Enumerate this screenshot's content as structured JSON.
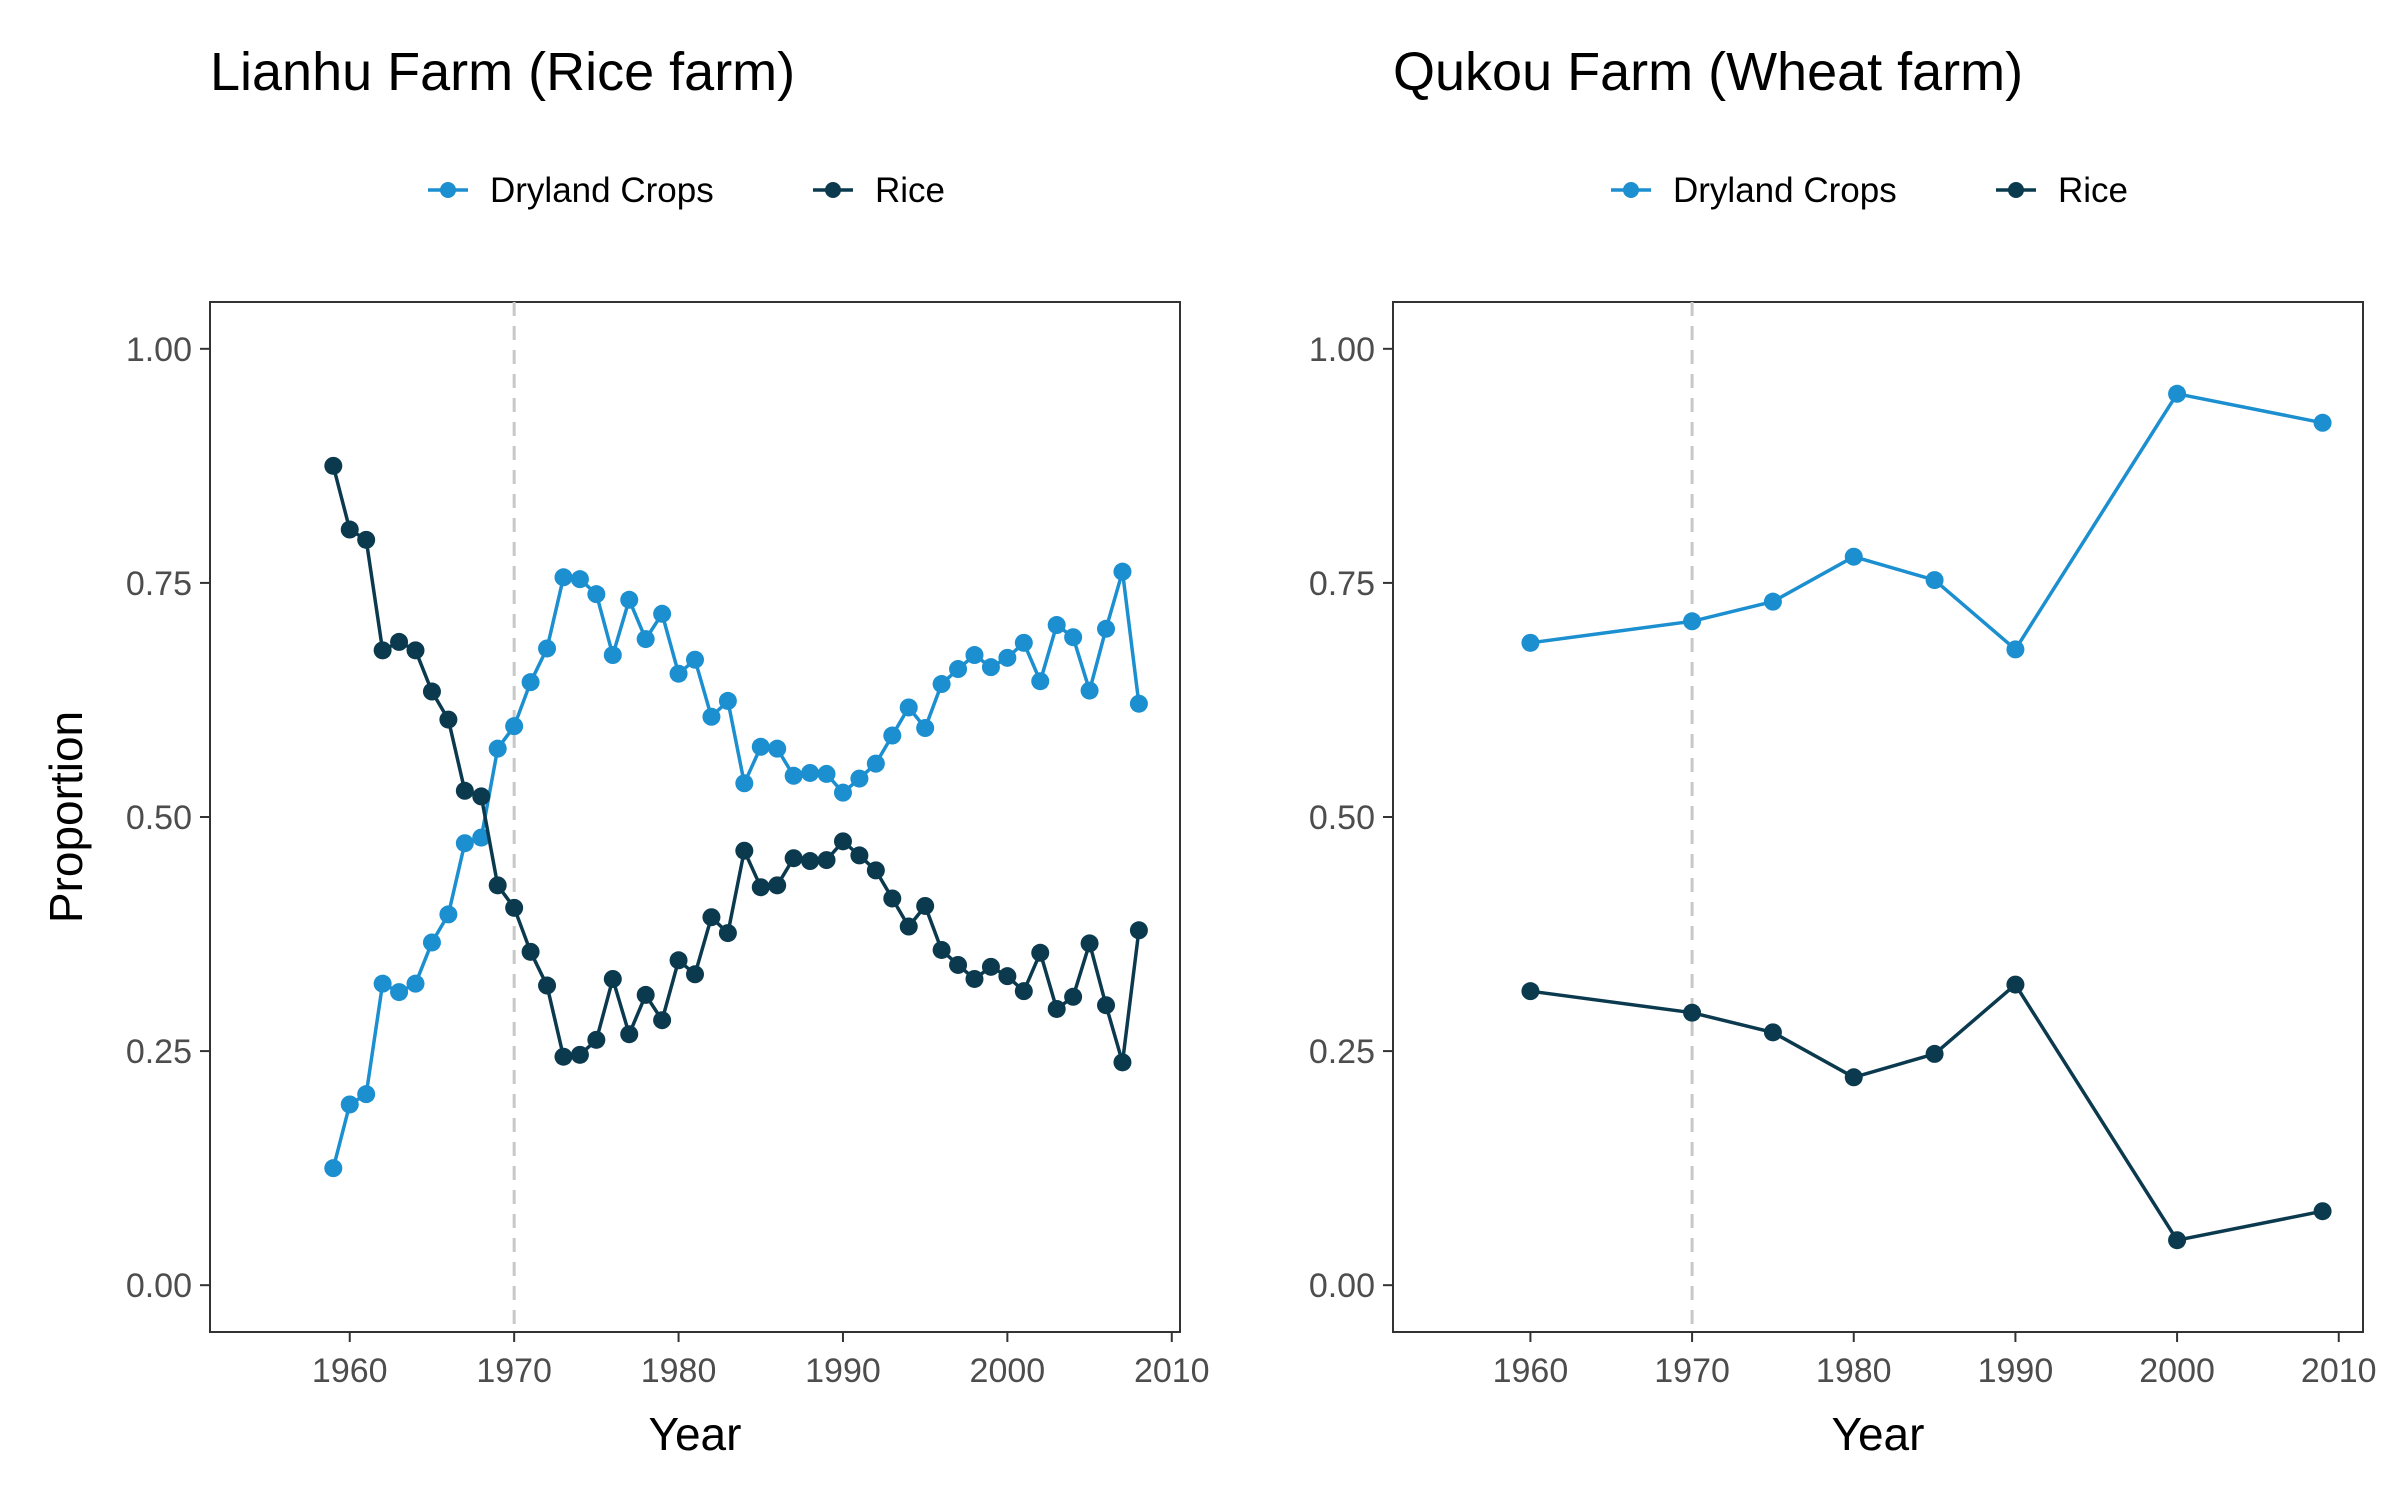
{
  "colors": {
    "dryland": "#1b8fcf",
    "rice": "#0b3a4f",
    "reference_line": "#c8c8c8",
    "frame": "#333333",
    "tick_text": "#4d4d4d"
  },
  "chart_data": [
    {
      "type": "line",
      "title": "Lianhu Farm (Rice farm)",
      "xlabel": "Year",
      "ylabel": "Proportion",
      "xlim": [
        1951.5,
        2010.5
      ],
      "ylim": [
        -0.05,
        1.05
      ],
      "x_ticks": [
        1960,
        1970,
        1980,
        1990,
        2000,
        2010
      ],
      "y_ticks": [
        0,
        0.25,
        0.5,
        0.75,
        1
      ],
      "x_tick_labels": [
        "1960",
        "1970",
        "1980",
        "1990",
        "2000",
        "2010"
      ],
      "y_tick_labels": [
        "0.00",
        "0.25",
        "0.50",
        "0.75",
        "1.00"
      ],
      "reference_line_x": 1970,
      "grid": false,
      "legend_position": "top",
      "legend": [
        "Dryland Crops",
        "Rice"
      ],
      "x": [
        1959,
        1960,
        1961,
        1962,
        1963,
        1964,
        1965,
        1966,
        1967,
        1968,
        1969,
        1970,
        1971,
        1972,
        1973,
        1974,
        1975,
        1976,
        1977,
        1978,
        1979,
        1980,
        1981,
        1982,
        1983,
        1984,
        1985,
        1986,
        1987,
        1988,
        1989,
        1990,
        1991,
        1992,
        1993,
        1994,
        1995,
        1996,
        1997,
        1998,
        1999,
        2000,
        2001,
        2002,
        2003,
        2004,
        2005,
        2006,
        2007,
        2008
      ],
      "series": [
        {
          "name": "Dryland Crops",
          "values": [
            0.125,
            0.193,
            0.204,
            0.322,
            0.313,
            0.322,
            0.366,
            0.396,
            0.472,
            0.478,
            0.573,
            0.597,
            0.644,
            0.68,
            0.756,
            0.754,
            0.738,
            0.673,
            0.732,
            0.69,
            0.717,
            0.653,
            0.668,
            0.607,
            0.624,
            0.536,
            0.575,
            0.573,
            0.544,
            0.547,
            0.546,
            0.526,
            0.541,
            0.557,
            0.587,
            0.617,
            0.595,
            0.642,
            0.658,
            0.673,
            0.66,
            0.67,
            0.686,
            0.645,
            0.705,
            0.692,
            0.635,
            0.701,
            0.762,
            0.621
          ]
        },
        {
          "name": "Rice",
          "values": [
            0.875,
            0.807,
            0.796,
            0.678,
            0.687,
            0.678,
            0.634,
            0.604,
            0.528,
            0.522,
            0.427,
            0.403,
            0.356,
            0.32,
            0.244,
            0.246,
            0.262,
            0.327,
            0.268,
            0.31,
            0.283,
            0.347,
            0.332,
            0.393,
            0.376,
            0.464,
            0.425,
            0.427,
            0.456,
            0.453,
            0.454,
            0.474,
            0.459,
            0.443,
            0.413,
            0.383,
            0.405,
            0.358,
            0.342,
            0.327,
            0.34,
            0.33,
            0.314,
            0.355,
            0.295,
            0.308,
            0.365,
            0.299,
            0.238,
            0.379
          ]
        }
      ]
    },
    {
      "type": "line",
      "title": "Qukou Farm (Wheat farm)",
      "xlabel": "Year",
      "ylabel": "",
      "xlim": [
        1951.5,
        2011.5
      ],
      "ylim": [
        -0.05,
        1.05
      ],
      "x_ticks": [
        1960,
        1970,
        1980,
        1990,
        2000,
        2010
      ],
      "y_ticks": [
        0,
        0.25,
        0.5,
        0.75,
        1
      ],
      "x_tick_labels": [
        "1960",
        "1970",
        "1980",
        "1990",
        "2000",
        "2010"
      ],
      "y_tick_labels": [
        "0.00",
        "0.25",
        "0.50",
        "0.75",
        "1.00"
      ],
      "reference_line_x": 1970,
      "grid": false,
      "legend_position": "top",
      "legend": [
        "Dryland Crops",
        "Rice"
      ],
      "x": [
        1960,
        1970,
        1975,
        1980,
        1985,
        1990,
        2000,
        2009
      ],
      "series": [
        {
          "name": "Dryland Crops",
          "values": [
            0.686,
            0.709,
            0.73,
            0.778,
            0.753,
            0.679,
            0.952,
            0.921
          ]
        },
        {
          "name": "Rice",
          "values": [
            0.314,
            0.291,
            0.27,
            0.222,
            0.247,
            0.321,
            0.048,
            0.079
          ]
        }
      ]
    }
  ]
}
